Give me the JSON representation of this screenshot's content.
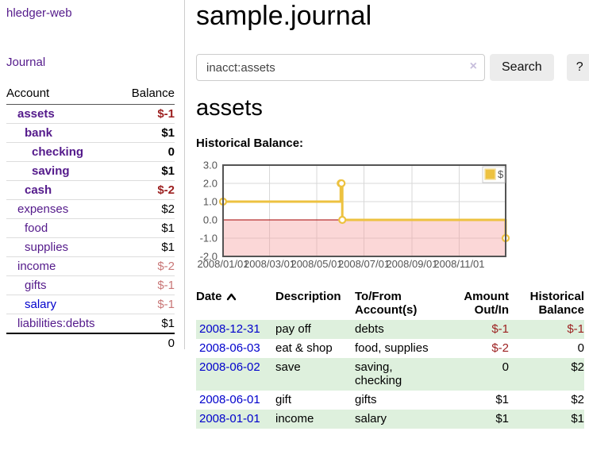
{
  "colors": {
    "link_purple": "#541a8b",
    "link_blue": "#0000cc",
    "negative_dark": "#9c1f1f",
    "negative_soft": "#c97777",
    "row_stripe_green": "#def0dd",
    "series_yellow": "#edc240",
    "zero_line_red": "#a40000",
    "negative_region_pink": "#f9dada"
  },
  "sidebar": {
    "brand": "hledger-web",
    "nav_journal": "Journal",
    "account_col": "Account",
    "balance_col": "Balance",
    "accounts": [
      {
        "name": "assets",
        "depth": 0,
        "bold": true,
        "balance": "$-1",
        "neg": "dark"
      },
      {
        "name": "bank",
        "depth": 1,
        "bold": true,
        "balance": "$1"
      },
      {
        "name": "checking",
        "depth": 2,
        "bold": true,
        "balance": "0"
      },
      {
        "name": "saving",
        "depth": 2,
        "bold": true,
        "balance": "$1"
      },
      {
        "name": "cash",
        "depth": 1,
        "bold": true,
        "balance": "$-2",
        "neg": "dark"
      },
      {
        "name": "expenses",
        "depth": 0,
        "bold": false,
        "balance": "$2"
      },
      {
        "name": "food",
        "depth": 1,
        "bold": false,
        "balance": "$1"
      },
      {
        "name": "supplies",
        "depth": 1,
        "bold": false,
        "balance": "$1"
      },
      {
        "name": "income",
        "depth": 0,
        "bold": false,
        "balance": "$-2",
        "neg": "soft"
      },
      {
        "name": "gifts",
        "depth": 1,
        "bold": false,
        "balance": "$-1",
        "neg": "soft"
      },
      {
        "name": "salary",
        "depth": 1,
        "bold": false,
        "balance": "$-1",
        "neg": "soft",
        "blue_link": true
      },
      {
        "name": "liabilities:debts",
        "depth": 0,
        "bold": false,
        "balance": "$1"
      }
    ],
    "total": "0"
  },
  "header": {
    "title": "sample.journal"
  },
  "search": {
    "query": "inacct:assets",
    "clear_icon": "×",
    "button": "Search",
    "help_button": "?"
  },
  "main": {
    "account_heading": "assets",
    "chart_label": "Historical Balance:"
  },
  "chart_data": {
    "type": "line",
    "subtype": "step",
    "title": "Historical Balance:",
    "legend": [
      {
        "label": "$",
        "color": "#edc240"
      }
    ],
    "legend_position": "top-right",
    "grid": true,
    "ylim": [
      -2,
      3
    ],
    "y_ticks": [
      {
        "v": 3,
        "label": "3.0"
      },
      {
        "v": 2,
        "label": "2.0"
      },
      {
        "v": 1,
        "label": "1.0"
      },
      {
        "v": 0,
        "label": "0.0"
      },
      {
        "v": -1,
        "label": "-1.0"
      },
      {
        "v": -2,
        "label": "-2.0"
      }
    ],
    "x_range_days": 365,
    "x_ticks": [
      {
        "day": 0,
        "label": "2008/01/01"
      },
      {
        "day": 60,
        "label": "2008/03/01"
      },
      {
        "day": 121,
        "label": "2008/05/01"
      },
      {
        "day": 182,
        "label": "2008/07/01"
      },
      {
        "day": 244,
        "label": "2008/09/01"
      },
      {
        "day": 305,
        "label": "2008/11/01"
      }
    ],
    "series": [
      {
        "name": "$",
        "color": "#edc240",
        "points": [
          {
            "date": "2008-01-01",
            "day": 0,
            "value": 1
          },
          {
            "date": "2008-06-01",
            "day": 152,
            "value": 2
          },
          {
            "date": "2008-06-02",
            "day": 153,
            "value": 2
          },
          {
            "date": "2008-06-03",
            "day": 154,
            "value": 0
          },
          {
            "date": "2008-12-31",
            "day": 365,
            "value": -1
          }
        ]
      }
    ],
    "negative_region_shaded": true,
    "zero_line": true
  },
  "register": {
    "headers": {
      "date": "Date",
      "description": "Description",
      "accounts": "To/From\nAccount(s)",
      "amount": "Amount\nOut/In",
      "balance": "Historical\nBalance"
    },
    "sort": {
      "column": "date",
      "direction": "ascending"
    },
    "rows": [
      {
        "date": "2008-12-31",
        "description": "pay off",
        "accounts": "debts",
        "amount": "$-1",
        "amount_neg": true,
        "balance": "$-1",
        "balance_neg": true
      },
      {
        "date": "2008-06-03",
        "description": "eat & shop",
        "accounts": "food, supplies",
        "amount": "$-2",
        "amount_neg": true,
        "balance": "0",
        "balance_neg": false
      },
      {
        "date": "2008-06-02",
        "description": "save",
        "accounts": "saving,\nchecking",
        "amount": "0",
        "amount_neg": false,
        "balance": "$2",
        "balance_neg": false
      },
      {
        "date": "2008-06-01",
        "description": "gift",
        "accounts": "gifts",
        "amount": "$1",
        "amount_neg": false,
        "balance": "$2",
        "balance_neg": false
      },
      {
        "date": "2008-01-01",
        "description": "income",
        "accounts": "salary",
        "amount": "$1",
        "amount_neg": false,
        "balance": "$1",
        "balance_neg": false
      }
    ]
  }
}
